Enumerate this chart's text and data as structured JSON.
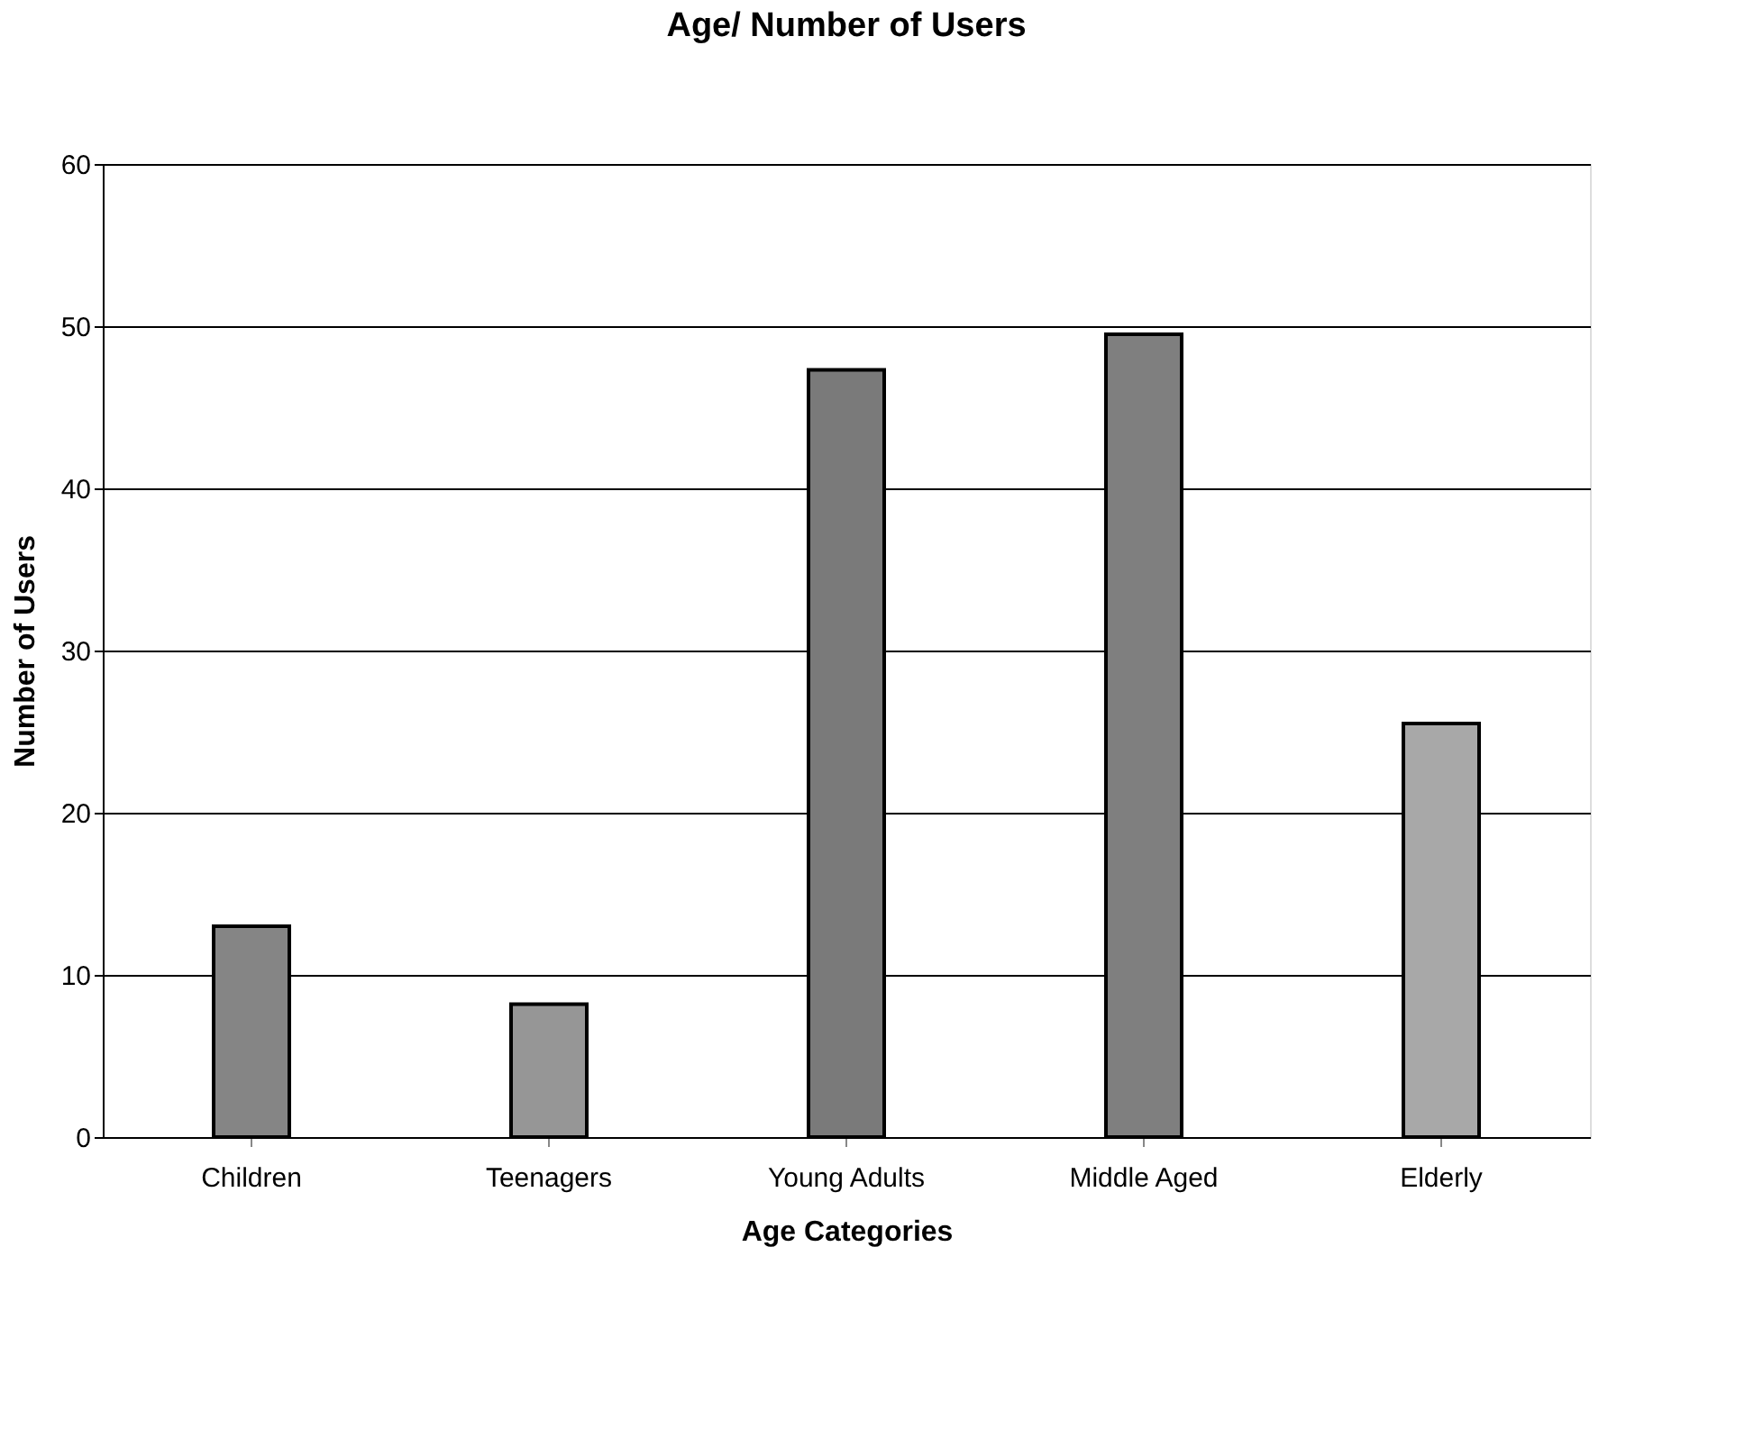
{
  "chart_data": {
    "type": "bar",
    "title": "Age/ Number of Users",
    "xlabel": "Age Categories",
    "ylabel": "Number of Users",
    "categories": [
      "Children",
      "Teenagers",
      "Young Adults",
      "Middle Aged",
      "Elderly"
    ],
    "values": [
      13,
      8.2,
      47.3,
      49.5,
      25.5
    ],
    "colors": [
      "#858585",
      "#969696",
      "#7a7a7a",
      "#7f7f7f",
      "#a8a8a8"
    ],
    "ylim": [
      0,
      60
    ],
    "yticks": [
      0,
      10,
      20,
      30,
      40,
      50,
      60
    ],
    "grid": "y",
    "legend": false
  }
}
